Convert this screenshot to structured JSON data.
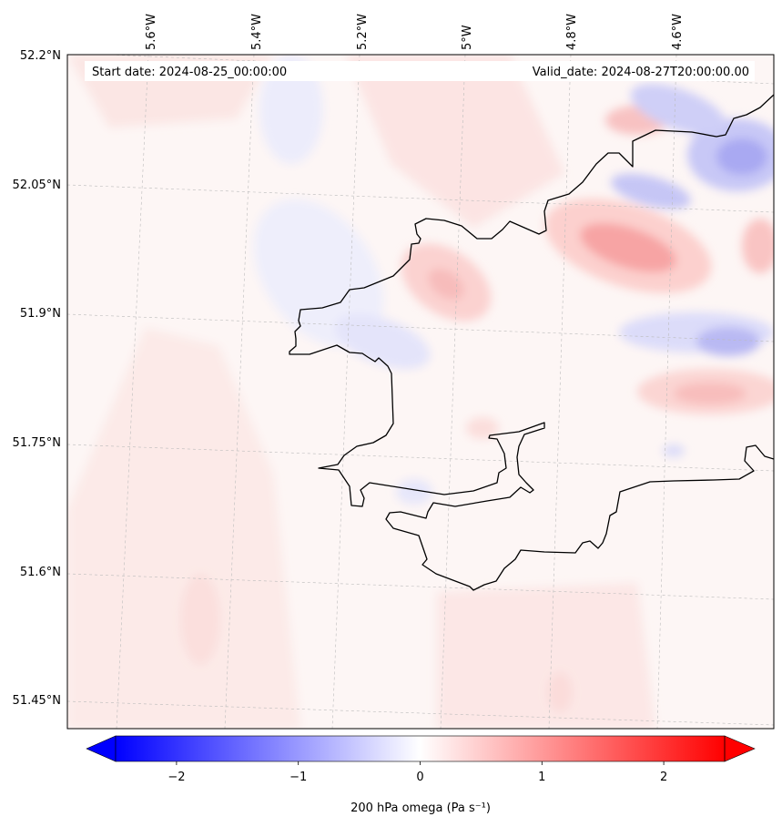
{
  "map": {
    "start_date_text": "Start date: 2024-08-25_00:00:00",
    "valid_date_text": "Valid_date: 2024-08-27T20:00:00.00",
    "longitude_labels": [
      "5.6°W",
      "5.4°W",
      "5.2°W",
      "5°W",
      "4.8°W",
      "4.6°W"
    ],
    "latitude_labels": [
      "52.2°N",
      "52.05°N",
      "51.9°N",
      "51.75°N",
      "51.6°N",
      "51.45°N"
    ],
    "coastline_color": "#000000",
    "gridline_color": "#bbbbbb"
  },
  "colorbar": {
    "label": "200 hPa omega (Pa s⁻¹)",
    "ticks": [
      "−2",
      "−1",
      "0",
      "1",
      "2"
    ],
    "tick_values": [
      -2,
      -1,
      0,
      1,
      2
    ],
    "range": [
      -2.5,
      2.5
    ],
    "low_color": "#0000ff",
    "mid_color": "#ffffff",
    "high_color": "#ff0000",
    "extend": "both"
  }
}
